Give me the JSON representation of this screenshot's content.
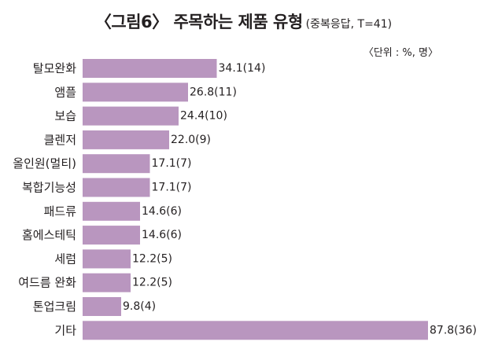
{
  "title": "〈그림6〉 주목하는 제품 유형",
  "subtitle": "(중복응답, T=41)",
  "unit_note": "〈단위 : %, 명〉",
  "colors": {
    "bar": "#b996bf",
    "text": "#231f20"
  },
  "chart_data": {
    "type": "bar",
    "orientation": "horizontal",
    "title": "〈그림6〉 주목하는 제품 유형",
    "subtitle": "(중복응답, T=41)",
    "categories": [
      "탈모완화",
      "앰플",
      "보습",
      "클렌저",
      "올인원(멀티)",
      "복합기능성",
      "패드류",
      "홈에스테틱",
      "세럼",
      "여드름 완화",
      "톤업크림",
      "기타"
    ],
    "values": [
      34.1,
      26.8,
      24.4,
      22.0,
      17.1,
      17.1,
      14.6,
      14.6,
      12.2,
      12.2,
      9.8,
      87.8
    ],
    "counts": [
      14,
      11,
      10,
      9,
      7,
      7,
      6,
      6,
      5,
      5,
      4,
      36
    ],
    "value_labels": [
      "34.1(14)",
      "26.8(11)",
      "24.4(10)",
      "22.0(9)",
      "17.1(7)",
      "17.1(7)",
      "14.6(6)",
      "14.6(6)",
      "12.2(5)",
      "12.2(5)",
      "9.8(4)",
      "87.8(36)"
    ],
    "xlim": [
      0,
      100
    ],
    "grid": false,
    "legend": "none"
  }
}
